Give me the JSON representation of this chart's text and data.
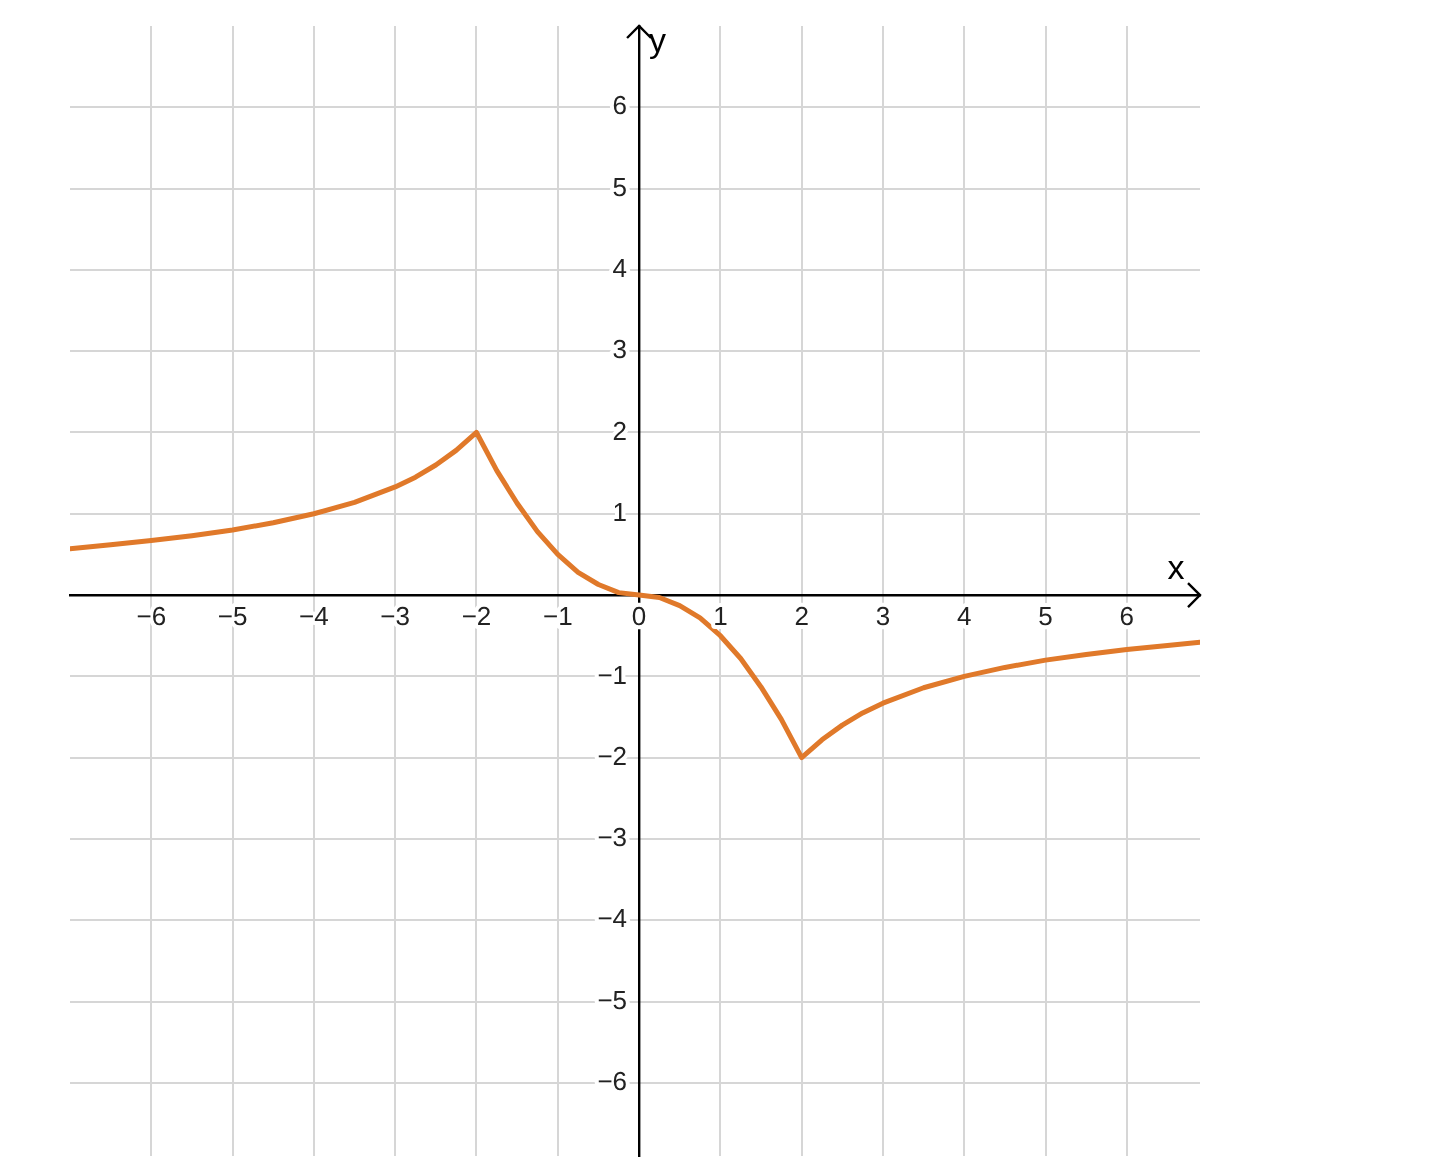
{
  "chart_data": {
    "type": "line",
    "xlabel": "x",
    "ylabel": "y",
    "x": [
      -7,
      -6.5,
      -6,
      -5.5,
      -5,
      -4.5,
      -4,
      -3.5,
      -3,
      -2.75,
      -2.5,
      -2.25,
      -2,
      -1.75,
      -1.5,
      -1.25,
      -1,
      -0.75,
      -0.5,
      -0.25,
      0,
      0.25,
      0.5,
      0.75,
      1,
      1.25,
      1.5,
      1.75,
      2,
      2.25,
      2.5,
      2.75,
      3,
      3.5,
      4,
      4.5,
      5,
      5.5,
      6,
      6.5,
      6.9
    ],
    "series": [
      {
        "color": "#e0792a",
        "values": [
          0.57,
          0.62,
          0.67,
          0.73,
          0.8,
          0.89,
          1,
          1.14,
          1.33,
          1.45,
          1.6,
          1.78,
          2,
          1.53,
          1.13,
          0.78,
          0.5,
          0.28,
          0.13,
          0.03,
          0,
          -0.03,
          -0.13,
          -0.28,
          -0.5,
          -0.78,
          -1.13,
          -1.53,
          -2,
          -1.78,
          -1.6,
          -1.45,
          -1.33,
          -1.14,
          -1,
          -0.89,
          -0.8,
          -0.73,
          -0.67,
          -0.62,
          -0.58
        ]
      }
    ],
    "xlim": [
      -7,
      6.9
    ],
    "ylim": [
      -6.9,
      7
    ],
    "xticks": [
      -6,
      -5,
      -4,
      -3,
      -2,
      -1,
      0,
      1,
      2,
      3,
      4,
      5,
      6
    ],
    "yticks": [
      -6,
      -5,
      -4,
      -3,
      -2,
      -1,
      {
        "value": 0,
        "label": null
      },
      1,
      2,
      3,
      4,
      5,
      6
    ],
    "grid": true,
    "legend": false,
    "marker": "none",
    "line_style": "solid"
  }
}
